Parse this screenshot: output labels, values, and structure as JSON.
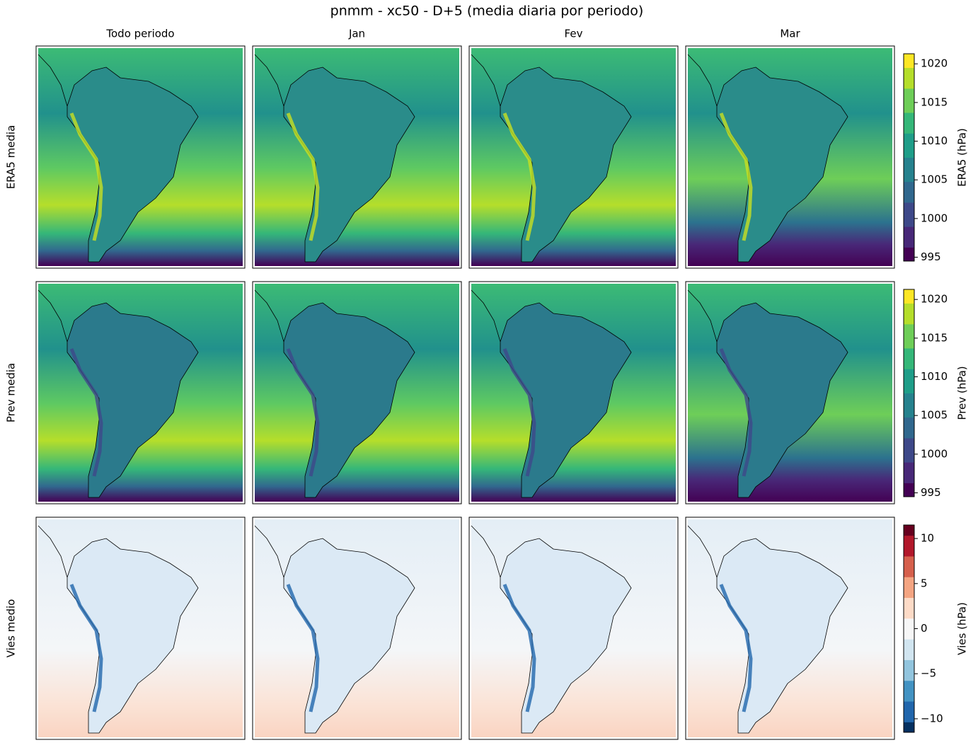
{
  "chart_data": {
    "type": "heatmap",
    "title": "pnmm - xc50 - D+5 (media diaria por periodo)",
    "columns": [
      "Todo periodo",
      "Jan",
      "Fev",
      "Mar"
    ],
    "rows": [
      {
        "label": "ERA5 media",
        "colorbar_label": "ERA5 (hPa)",
        "colormap": "viridis",
        "zlim": [
          994.5,
          1021.3
        ],
        "zticks": [
          995,
          1000,
          1005,
          1010,
          1015,
          1020
        ]
      },
      {
        "label": "Prev media",
        "colorbar_label": "Prev (hPa)",
        "colormap": "viridis",
        "zlim": [
          994.5,
          1021.3
        ],
        "zticks": [
          995,
          1000,
          1005,
          1010,
          1015,
          1020
        ]
      },
      {
        "label": "Vies medio",
        "colorbar_label": "Vies (hPa)",
        "colormap": "RdBu_r",
        "zlim": [
          -11.5,
          11.5
        ],
        "zticks": [
          {
            "value": -10,
            "label": "−10"
          },
          {
            "value": -5,
            "label": "−5"
          },
          0,
          5,
          10
        ]
      }
    ]
  }
}
